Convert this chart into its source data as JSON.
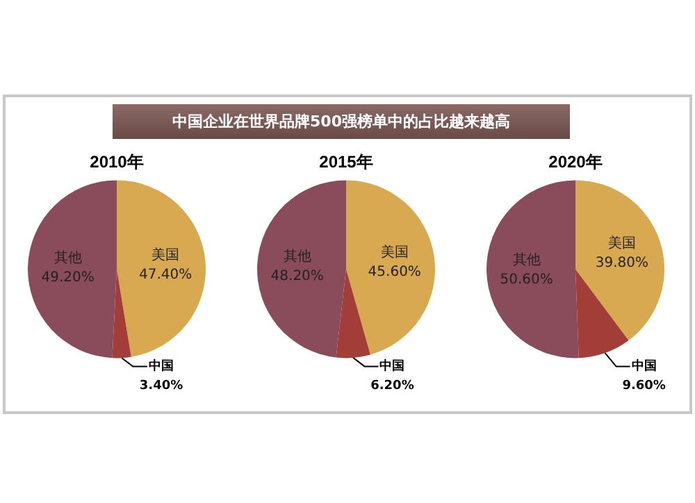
{
  "chart_data": [
    {
      "type": "pie",
      "title": "2010年",
      "annotations": [
        "中国企业在世界品牌500强榜单中的占比越来越高"
      ],
      "categories": [
        "美国",
        "中国",
        "其他"
      ],
      "values": [
        47.4,
        3.4,
        49.2
      ],
      "value_labels": [
        "47.40%",
        "3.40%",
        "49.20%"
      ],
      "colors": [
        "#d9a952",
        "#a33d37",
        "#8a4b5b"
      ]
    },
    {
      "type": "pie",
      "title": "2015年",
      "categories": [
        "美国",
        "中国",
        "其他"
      ],
      "values": [
        45.6,
        6.2,
        48.2
      ],
      "value_labels": [
        "45.60%",
        "6.20%",
        "48.20%"
      ],
      "colors": [
        "#d9a952",
        "#a33d37",
        "#8a4b5b"
      ]
    },
    {
      "type": "pie",
      "title": "2020年",
      "categories": [
        "美国",
        "中国",
        "其他"
      ],
      "values": [
        39.8,
        9.6,
        50.6
      ],
      "value_labels": [
        "39.80%",
        "9.60%",
        "50.60%"
      ],
      "colors": [
        "#d9a952",
        "#a33d37",
        "#8a4b5b"
      ]
    }
  ]
}
